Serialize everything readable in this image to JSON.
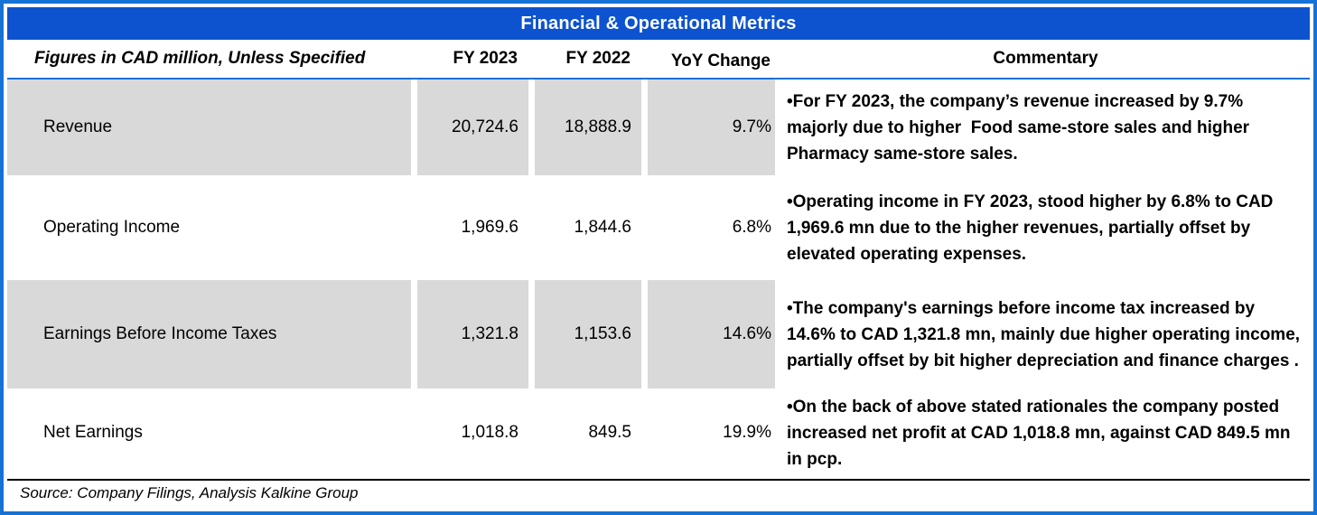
{
  "title": "Financial & Operational Metrics",
  "header": {
    "label": "Figures in CAD million, Unless Specified",
    "col_fy2023": "FY 2023",
    "col_fy2022": "FY 2022",
    "col_yoy": "YoY Change",
    "col_commentary": "Commentary"
  },
  "rows": [
    {
      "metric": "Revenue",
      "fy2023": "20,724.6",
      "fy2022": "18,888.9",
      "yoy": "9.7%",
      "commentary": "•For FY 2023, the company’s revenue increased by 9.7% majorly due to higher  Food same-store sales and higher Pharmacy same-store sales."
    },
    {
      "metric": "Operating Income",
      "fy2023": "1,969.6",
      "fy2022": "1,844.6",
      "yoy": "6.8%",
      "commentary": "•Operating income in FY 2023, stood higher by 6.8% to CAD 1,969.6 mn due to the higher revenues, partially offset by elevated operating expenses."
    },
    {
      "metric": "Earnings Before Income Taxes",
      "fy2023": "1,321.8",
      "fy2022": "1,153.6",
      "yoy": "14.6%",
      "commentary": "•The company's earnings before income tax increased by 14.6% to CAD 1,321.8 mn, mainly due higher operating income, partially offset by bit higher depreciation and finance charges ."
    },
    {
      "metric": "Net Earnings",
      "fy2023": "1,018.8",
      "fy2022": "849.5",
      "yoy": "19.9%",
      "commentary": "•On the back of above stated rationales the company posted increased net profit at CAD 1,018.8 mn, against CAD 849.5 mn in pcp."
    }
  ],
  "source": "Source: Company Filings, Analysis Kalkine Group",
  "colors": {
    "accent_blue": "#0d53cf",
    "border_blue": "#1672d4",
    "row_grey": "#d9d9d9",
    "text_black": "#000000"
  }
}
